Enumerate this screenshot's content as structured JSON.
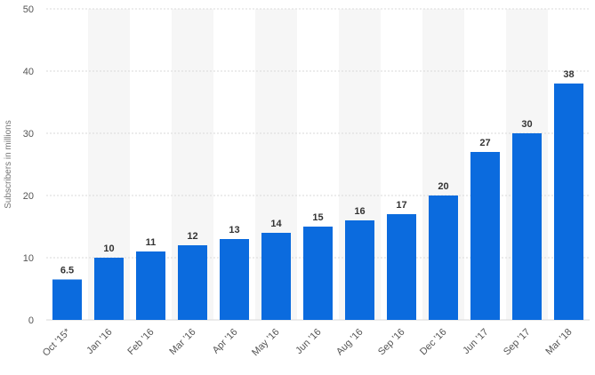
{
  "chart_data": {
    "type": "bar",
    "categories": [
      "Oct '15*",
      "Jan '16",
      "Feb '16",
      "Mar '16",
      "Apr '16",
      "May '16",
      "Jun '16",
      "Aug '16",
      "Sep '16",
      "Dec '16",
      "Jun '17",
      "Sep '17",
      "Mar '18"
    ],
    "values": [
      6.5,
      10,
      11,
      12,
      13,
      14,
      15,
      16,
      17,
      20,
      27,
      30,
      38
    ],
    "data_labels": [
      "6.5",
      "10",
      "11",
      "12",
      "13",
      "14",
      "15",
      "16",
      "17",
      "20",
      "27",
      "30",
      "38"
    ],
    "ylabel": "Subscribers in millions",
    "xlabel": "",
    "ylim": [
      0,
      50
    ],
    "yticks": [
      0,
      10,
      20,
      30,
      40,
      50
    ],
    "ytick_labels": [
      "0",
      "10",
      "20",
      "30",
      "40",
      "50"
    ],
    "grid": true,
    "alternating_column_bands": true,
    "bar_color": "#0b6bde",
    "band_color": "#f6f6f6",
    "grid_color": "#d9d9d9"
  }
}
